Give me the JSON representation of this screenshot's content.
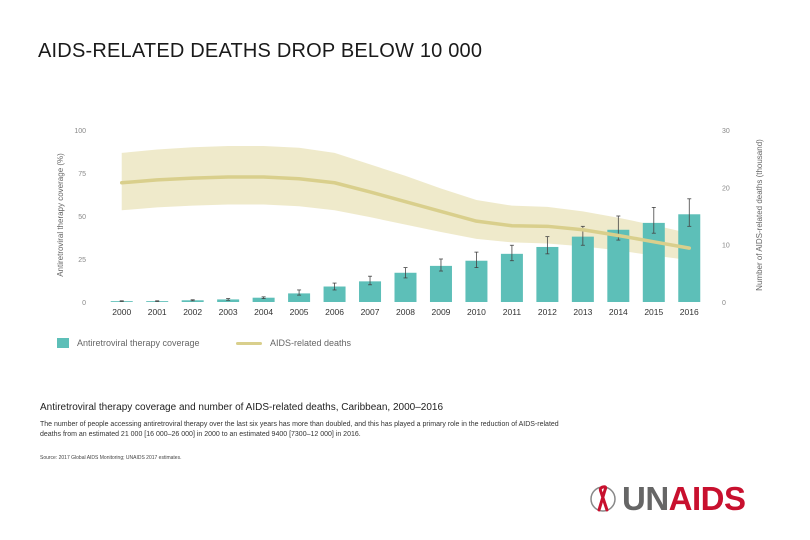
{
  "slide": {
    "title": "AIDS-RELATED DEATHS DROP BELOW 10 000",
    "caption": "Antiretroviral therapy coverage and number of AIDS-related deaths, Caribbean, 2000–2016",
    "description": "The number of people accessing antiretroviral therapy over the last six years has more than doubled, and this has played a primary role in the reduction of AIDS-related deaths from an estimated 21 000 [16 000–26 000] in 2000 to an estimated 9400 [7300–12 000] in 2016.",
    "source": "Source: 2017 Global AIDS Monitoring; UNAIDS 2017 estimates.",
    "logo": {
      "prefix": "UN",
      "suffix": "AIDS"
    }
  },
  "colors": {
    "bar": "#5dbfb8",
    "line": "#d9cf8c",
    "band": "#ece6c2",
    "axis_text": "#888888"
  },
  "chart_data": {
    "type": "bar",
    "title": "Antiretroviral therapy coverage and number of AIDS-related deaths, Caribbean, 2000–2016",
    "categories": [
      "2000",
      "2001",
      "2002",
      "2003",
      "2004",
      "2005",
      "2006",
      "2007",
      "2008",
      "2009",
      "2010",
      "2011",
      "2012",
      "2013",
      "2014",
      "2015",
      "2016"
    ],
    "ylabel": "Antiretroviral therapy coverage (%)",
    "ylim": [
      0,
      100
    ],
    "yticks": [
      "0",
      "25",
      "50",
      "75",
      "100"
    ],
    "y2label": "Number of AIDS-related deaths (thousand)",
    "y2lim": [
      0,
      30
    ],
    "y2ticks": [
      "0",
      "10",
      "20",
      "30"
    ],
    "series": [
      {
        "name": "Antiretroviral therapy coverage",
        "type": "bar",
        "axis": "left",
        "values": [
          0.5,
          0.5,
          1,
          1.5,
          2.5,
          5,
          9,
          12,
          17,
          21,
          24,
          28,
          32,
          38,
          42,
          46,
          51
        ],
        "error_low": [
          0.3,
          0.3,
          0.7,
          1,
          2,
          4,
          7,
          10,
          14,
          18,
          20,
          24,
          28,
          33,
          36,
          40,
          44
        ],
        "error_high": [
          0.7,
          0.7,
          1.3,
          2,
          3,
          7,
          11,
          15,
          20,
          25,
          29,
          33,
          38,
          44,
          50,
          55,
          60
        ]
      },
      {
        "name": "AIDS-related deaths",
        "type": "line",
        "axis": "right",
        "values": [
          20.8,
          21.3,
          21.6,
          21.8,
          21.8,
          21.5,
          20.8,
          19.2,
          17.5,
          15.8,
          14.1,
          13.3,
          13.2,
          12.6,
          11.6,
          10.5,
          9.4
        ],
        "band_low": [
          16,
          16.5,
          16.8,
          17,
          17,
          16.7,
          16,
          14.8,
          13.5,
          12.2,
          11,
          10.4,
          10.2,
          9.7,
          9,
          8.1,
          7.3
        ],
        "band_high": [
          26,
          26.6,
          27,
          27.2,
          27.2,
          26.9,
          26,
          24,
          22,
          19.8,
          17.8,
          16.8,
          16.6,
          15.8,
          14.7,
          13.4,
          12
        ]
      }
    ],
    "legend": [
      "Antiretroviral therapy coverage",
      "AIDS-related deaths"
    ]
  }
}
